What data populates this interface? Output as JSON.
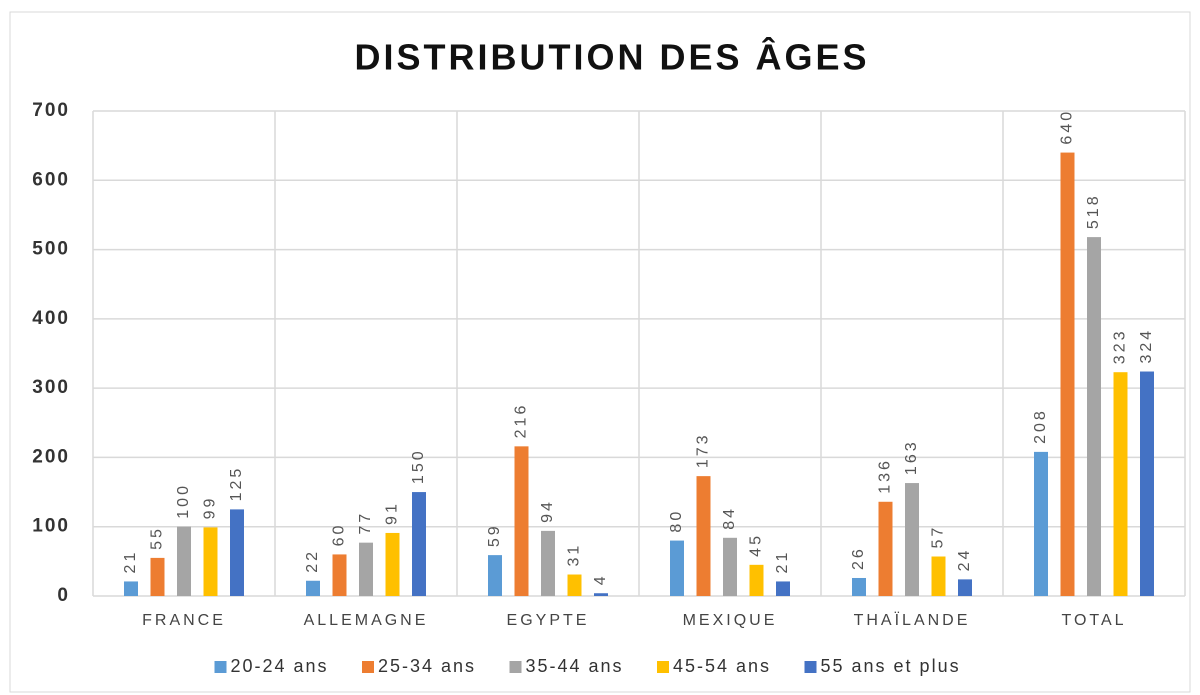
{
  "chart_data": {
    "type": "bar",
    "title": "DISTRIBUTION DES ÂGES",
    "categories": [
      "FRANCE",
      "ALLEMAGNE",
      "EGYPTE",
      "MEXIQUE",
      "THAÏLANDE",
      "TOTAL"
    ],
    "series": [
      {
        "name": "20-24 ans",
        "color": "#5b9bd5",
        "values": [
          21,
          22,
          59,
          80,
          26,
          208
        ]
      },
      {
        "name": "25-34 ans",
        "color": "#ed7d31",
        "values": [
          55,
          60,
          216,
          173,
          136,
          640
        ]
      },
      {
        "name": "35-44 ans",
        "color": "#a5a5a5",
        "values": [
          100,
          77,
          94,
          84,
          163,
          518
        ]
      },
      {
        "name": "45-54 ans",
        "color": "#ffc000",
        "values": [
          99,
          91,
          31,
          45,
          57,
          323
        ]
      },
      {
        "name": "55 ans et plus",
        "color": "#4472c4",
        "values": [
          125,
          150,
          4,
          21,
          24,
          324
        ]
      }
    ],
    "ylim": [
      0,
      700
    ],
    "yticks": [
      0,
      100,
      200,
      300,
      400,
      500,
      600,
      700
    ],
    "grid": true,
    "legend": "bottom"
  }
}
